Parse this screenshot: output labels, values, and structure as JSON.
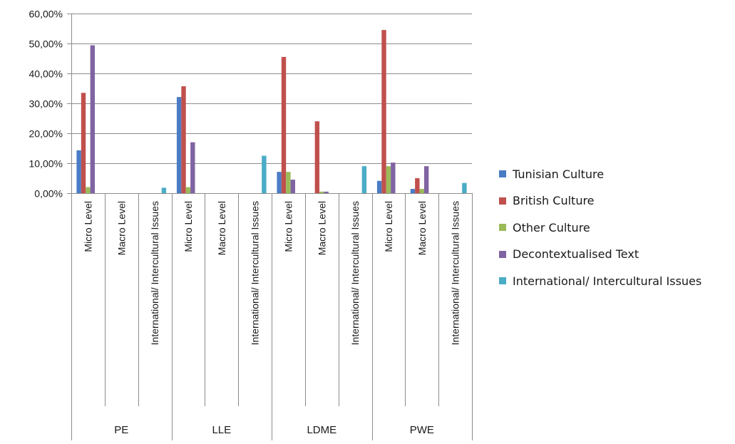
{
  "chart_data": {
    "type": "bar",
    "title": "",
    "xlabel": "",
    "ylabel": "",
    "ylim": [
      0,
      60
    ],
    "y_ticks": [
      "0,00%",
      "10,00%",
      "20,00%",
      "30,00%",
      "40,00%",
      "50,00%",
      "60,00%"
    ],
    "y_tick_values": [
      0,
      10,
      20,
      30,
      40,
      50,
      60
    ],
    "gridlines": "horizontal",
    "legend_position": "right",
    "groups": [
      "PE",
      "LLE",
      "LDME",
      "PWE"
    ],
    "subcategories": [
      "Micro Level",
      "Macro Level",
      "International/ Intercultural Issues"
    ],
    "categories": [
      "Micro Level",
      "Macro Level",
      "International/ Intercultural Issues",
      "Micro Level",
      "Macro Level",
      "International/ Intercultural Issues",
      "Micro Level",
      "Macro Level",
      "International/ Intercultural Issues",
      "Micro Level",
      "Macro Level",
      "International/ Intercultural Issues"
    ],
    "series": [
      {
        "name": "Tunisian Culture",
        "color": "#4a7cc5",
        "values": [
          14.3,
          0,
          0,
          32.1,
          0,
          0,
          7.1,
          0,
          0,
          4.1,
          1.4,
          0
        ]
      },
      {
        "name": "British Culture",
        "color": "#c0504d",
        "values": [
          33.5,
          0,
          0,
          35.7,
          0,
          0,
          45.5,
          24.0,
          0,
          54.5,
          5.0,
          0
        ]
      },
      {
        "name": "Other Culture",
        "color": "#9bbb59",
        "values": [
          2.0,
          0,
          0,
          2.0,
          0,
          0,
          7.1,
          0.5,
          0,
          9.0,
          1.4,
          0
        ]
      },
      {
        "name": "Decontextualised Text",
        "color": "#8064a2",
        "values": [
          49.4,
          0,
          0,
          17.0,
          0,
          0,
          4.5,
          0.5,
          0,
          10.2,
          9.0,
          0
        ]
      },
      {
        "name": "International/ Intercultural Issues",
        "color": "#4bacc6",
        "values": [
          0,
          0,
          1.8,
          0,
          0,
          12.5,
          0,
          0,
          9.0,
          0,
          0,
          3.4
        ]
      }
    ]
  }
}
